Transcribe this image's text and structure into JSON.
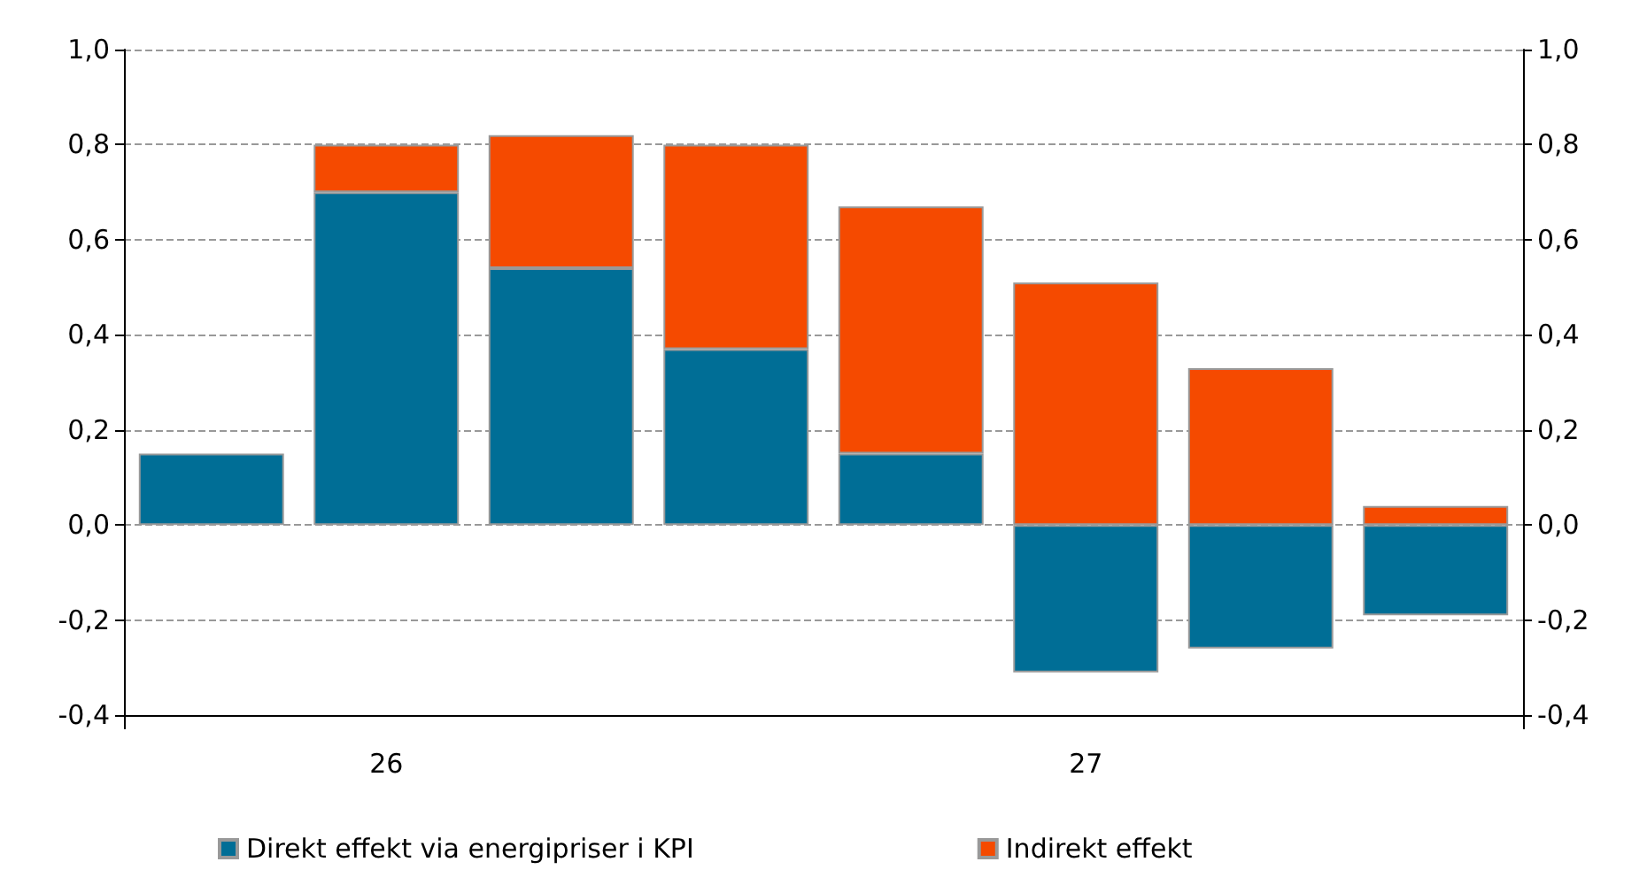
{
  "chart_data": {
    "type": "bar",
    "stacked": true,
    "categories": [
      null,
      "26",
      null,
      null,
      null,
      "27",
      null,
      null
    ],
    "series": [
      {
        "name": "Direkt effekt via energipriser i KPI",
        "color": "#006e96",
        "values": [
          0.15,
          0.7,
          0.54,
          0.37,
          0.15,
          -0.31,
          -0.26,
          -0.19
        ]
      },
      {
        "name": "Indirekt effekt",
        "color": "#f54a00",
        "values": [
          null,
          0.1,
          0.28,
          0.43,
          0.52,
          0.51,
          0.33,
          0.04
        ]
      }
    ],
    "ylim": [
      -0.4,
      1.0
    ],
    "yticks": [
      {
        "value": -0.4,
        "label": "-0,4"
      },
      {
        "value": -0.2,
        "label": "-0,2"
      },
      {
        "value": 0,
        "label": "0,0"
      },
      {
        "value": 0.2,
        "label": "0,2"
      },
      {
        "value": 0.4,
        "label": "0,4"
      },
      {
        "value": 0.6,
        "label": "0,6"
      },
      {
        "value": 0.8,
        "label": "0,8"
      },
      {
        "value": 1.0,
        "label": "1,0"
      }
    ],
    "y2lim": [
      -0.4,
      1.0
    ],
    "y2ticks": [
      {
        "value": -0.4,
        "label": "-0,4"
      },
      {
        "value": -0.2,
        "label": "-0,2"
      },
      {
        "value": 0,
        "label": "0,0"
      },
      {
        "value": 0.2,
        "label": "0,2"
      },
      {
        "value": 0.4,
        "label": "0,4"
      },
      {
        "value": 0.6,
        "label": "0,6"
      },
      {
        "value": 0.8,
        "label": "0,8"
      },
      {
        "value": 1.0,
        "label": "1,0"
      }
    ],
    "grid": "y",
    "legend": "bottom"
  }
}
